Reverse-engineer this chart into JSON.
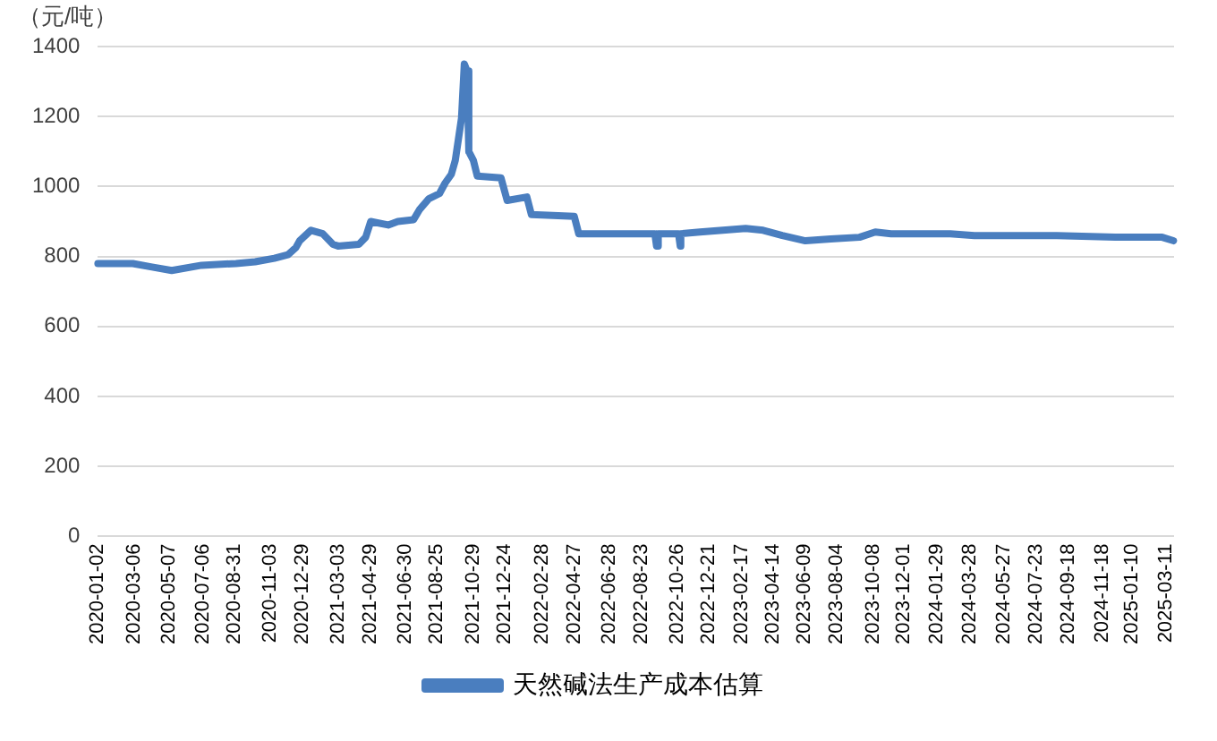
{
  "chart_data": {
    "type": "line",
    "ylabel": "（元/吨）",
    "x": [
      "2020-01-02",
      "2020-03-04",
      "2020-04-07",
      "2020-05-12",
      "2020-07-04",
      "2020-09-03",
      "2020-10-07",
      "2020-11-10",
      "2020-12-04",
      "2020-12-18",
      "2020-12-25",
      "2021-01-14",
      "2021-02-04",
      "2021-02-22",
      "2021-03-03",
      "2021-04-09",
      "2021-04-21",
      "2021-04-30",
      "2021-05-31",
      "2021-06-17",
      "2021-07-15",
      "2021-07-26",
      "2021-08-11",
      "2021-08-30",
      "2021-09-09",
      "2021-09-20",
      "2021-09-27",
      "2021-10-08",
      "2021-10-13",
      "2021-10-18",
      "2021-10-21",
      "2021-10-29",
      "2021-11-05",
      "2021-12-17",
      "2021-12-28",
      "2022-02-01",
      "2022-02-09",
      "2022-04-26",
      "2022-05-04",
      "2022-09-16",
      "2022-09-19",
      "2022-09-21",
      "2022-09-22",
      "2022-10-28",
      "2022-10-31",
      "2022-11-01",
      "2022-12-05",
      "2023-02-24",
      "2023-03-27",
      "2023-04-30",
      "2023-06-10",
      "2023-07-25",
      "2023-09-14",
      "2023-10-12",
      "2023-11-09",
      "2024-02-22",
      "2024-04-05",
      "2024-08-29",
      "2024-12-11",
      "2025-03-04",
      "2025-03-24"
    ],
    "series": [
      {
        "name": "天然碱法生产成本估算",
        "color": "#4a7ebf",
        "values": [
          780,
          780,
          770,
          760,
          775,
          780,
          785,
          795,
          805,
          825,
          845,
          875,
          865,
          835,
          830,
          835,
          855,
          900,
          890,
          900,
          905,
          935,
          965,
          980,
          1010,
          1035,
          1075,
          1195,
          1350,
          1330,
          1100,
          1075,
          1030,
          1025,
          960,
          970,
          920,
          915,
          865,
          865,
          830,
          830,
          865,
          865,
          830,
          865,
          870,
          880,
          875,
          860,
          845,
          850,
          855,
          870,
          865,
          865,
          860,
          860,
          855,
          855,
          845
        ]
      }
    ],
    "xlim": [
      "2020-01-02",
      "2025-03-25"
    ],
    "xticks": [
      "2020-01-02",
      "2020-03-06",
      "2020-05-07",
      "2020-07-06",
      "2020-08-31",
      "2020-11-03",
      "2020-12-29",
      "2021-03-03",
      "2021-04-29",
      "2021-06-30",
      "2021-08-25",
      "2021-10-29",
      "2021-12-24",
      "2022-02-28",
      "2022-04-27",
      "2022-06-28",
      "2022-08-23",
      "2022-10-26",
      "2022-12-21",
      "2023-02-17",
      "2023-04-14",
      "2023-06-09",
      "2023-08-04",
      "2023-10-08",
      "2023-12-01",
      "2024-01-29",
      "2024-03-28",
      "2024-05-27",
      "2024-07-23",
      "2024-09-18",
      "2024-11-18",
      "2025-01-10",
      "2025-03-11"
    ],
    "ylim": [
      0,
      1400
    ],
    "yticks": [
      0,
      200,
      400,
      600,
      800,
      1000,
      1200,
      1400
    ],
    "grid": "y",
    "legend": "bottom"
  }
}
